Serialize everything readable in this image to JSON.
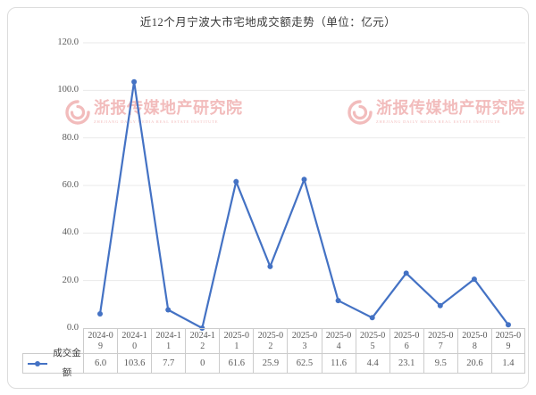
{
  "title": "近12个月宁波大市宅地成交额走势（单位：亿元）",
  "legend": {
    "label": "成交金额"
  },
  "watermark": {
    "text": "浙报传媒地产研究院",
    "subtext": "ZHEJIANG DAILY MEDIA REAL ESTATE INSTITUTE",
    "color": "#f2bcbc"
  },
  "colors": {
    "line": "#4472c4",
    "grid": "#e9e9e9",
    "table_border": "#cccccc",
    "axis_text": "#595959",
    "title_text": "#383838"
  },
  "chart_data": {
    "type": "line",
    "title": "近12个月宁波大市宅地成交额走势（单位：亿元）",
    "categories": [
      "2024-09",
      "2024-10",
      "2024-11",
      "2024-12",
      "2025-01",
      "2025-02",
      "2025-03",
      "2025-04",
      "2025-05",
      "2025-06",
      "2025-07",
      "2025-08",
      "2025-09"
    ],
    "series": [
      {
        "name": "成交金额",
        "values": [
          6.0,
          103.6,
          7.7,
          0,
          61.6,
          25.9,
          62.5,
          11.6,
          4.4,
          23.1,
          9.5,
          20.6,
          1.4
        ],
        "value_labels": [
          "6.0",
          "103.6",
          "7.7",
          "0",
          "61.6",
          "25.9",
          "62.5",
          "11.6",
          "4.4",
          "23.1",
          "9.5",
          "20.6",
          "1.4"
        ]
      }
    ],
    "xlabel": "",
    "ylabel": "",
    "ylim": [
      0,
      120
    ],
    "ytick_interval": 20,
    "ytick_labels": [
      "0.0",
      "20.0",
      "40.0",
      "60.0",
      "80.0",
      "100.0",
      "120.0"
    ],
    "grid": true,
    "legend_position": "bottom data table"
  }
}
